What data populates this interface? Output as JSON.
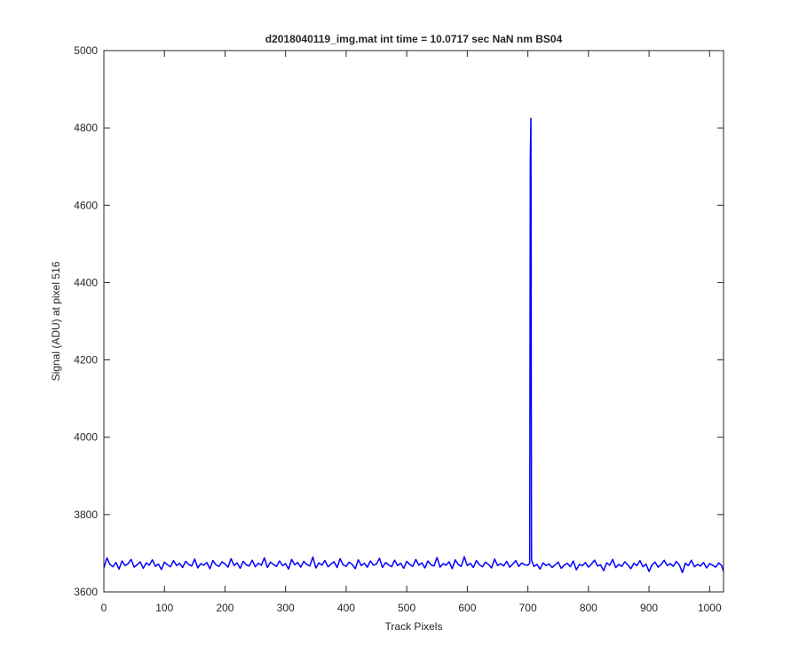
{
  "chart_data": {
    "type": "line",
    "title": "d2018040119_img.mat int time = 10.0717 sec  NaN nm BS04",
    "xlabel": "Track Pixels",
    "ylabel": "Signal (ADU) at pixel 516",
    "color": "#0000ff",
    "xlim": [
      0,
      1023
    ],
    "ylim": [
      3600,
      5000
    ],
    "xticks": [
      0,
      100,
      200,
      300,
      400,
      500,
      600,
      700,
      800,
      900,
      1000
    ],
    "yticks": [
      3600,
      3800,
      4000,
      4200,
      4400,
      4600,
      4800,
      5000
    ],
    "x": [
      0,
      5,
      10,
      15,
      20,
      25,
      30,
      35,
      40,
      45,
      50,
      55,
      60,
      65,
      70,
      75,
      80,
      85,
      90,
      95,
      100,
      105,
      110,
      115,
      120,
      125,
      130,
      135,
      140,
      145,
      150,
      155,
      160,
      165,
      170,
      175,
      180,
      185,
      190,
      195,
      200,
      205,
      210,
      215,
      220,
      225,
      230,
      235,
      240,
      245,
      250,
      255,
      260,
      265,
      270,
      275,
      280,
      285,
      290,
      295,
      300,
      305,
      310,
      315,
      320,
      325,
      330,
      335,
      340,
      345,
      350,
      355,
      360,
      365,
      370,
      375,
      380,
      385,
      390,
      395,
      400,
      405,
      410,
      415,
      420,
      425,
      430,
      435,
      440,
      445,
      450,
      455,
      460,
      465,
      470,
      475,
      480,
      485,
      490,
      495,
      500,
      505,
      510,
      515,
      520,
      525,
      530,
      535,
      540,
      545,
      550,
      555,
      560,
      565,
      570,
      575,
      580,
      585,
      590,
      595,
      600,
      605,
      610,
      615,
      620,
      625,
      630,
      635,
      640,
      645,
      650,
      655,
      660,
      665,
      670,
      675,
      680,
      685,
      690,
      695,
      700,
      703,
      704,
      705,
      706,
      710,
      715,
      720,
      725,
      730,
      735,
      740,
      745,
      750,
      755,
      760,
      765,
      770,
      775,
      780,
      785,
      790,
      795,
      800,
      805,
      810,
      815,
      820,
      825,
      830,
      835,
      840,
      845,
      850,
      855,
      860,
      865,
      870,
      875,
      880,
      885,
      890,
      895,
      900,
      905,
      910,
      915,
      920,
      925,
      930,
      935,
      940,
      945,
      950,
      955,
      960,
      965,
      970,
      975,
      980,
      985,
      990,
      995,
      1000,
      1005,
      1010,
      1015,
      1020,
      1023
    ],
    "values": [
      3662,
      3688,
      3671,
      3665,
      3676,
      3659,
      3680,
      3668,
      3673,
      3684,
      3664,
      3670,
      3678,
      3661,
      3675,
      3669,
      3683,
      3666,
      3672,
      3658,
      3677,
      3670,
      3665,
      3681,
      3668,
      3674,
      3663,
      3679,
      3671,
      3667,
      3685,
      3662,
      3673,
      3669,
      3676,
      3660,
      3681,
      3670,
      3666,
      3678,
      3672,
      3664,
      3686,
      3668,
      3675,
      3661,
      3679,
      3670,
      3667,
      3682,
      3665,
      3674,
      3669,
      3688,
      3663,
      3677,
      3671,
      3666,
      3680,
      3668,
      3673,
      3659,
      3684,
      3670,
      3676,
      3664,
      3679,
      3671,
      3667,
      3690,
      3662,
      3675,
      3669,
      3681,
      3665,
      3672,
      3678,
      3663,
      3686,
      3670,
      3666,
      3677,
      3671,
      3660,
      3683,
      3668,
      3674,
      3664,
      3680,
      3669,
      3672,
      3687,
      3663,
      3676,
      3670,
      3665,
      3682,
      3668,
      3674,
      3661,
      3679,
      3671,
      3666,
      3684,
      3669,
      3675,
      3662,
      3680,
      3670,
      3667,
      3689,
      3664,
      3673,
      3669,
      3678,
      3660,
      3683,
      3671,
      3666,
      3691,
      3668,
      3674,
      3663,
      3681,
      3670,
      3665,
      3677,
      3671,
      3662,
      3685,
      3668,
      3673,
      3667,
      3679,
      3664,
      3672,
      3681,
      3666,
      3675,
      3670,
      3669,
      3674,
      4720,
      4825,
      3682,
      3666,
      3671,
      3659,
      3675,
      3668,
      3672,
      3663,
      3670,
      3677,
      3661,
      3669,
      3674,
      3665,
      3680,
      3657,
      3671,
      3668,
      3676,
      3664,
      3672,
      3682,
      3667,
      3670,
      3655,
      3675,
      3669,
      3684,
      3663,
      3671,
      3666,
      3678,
      3670,
      3660,
      3674,
      3668,
      3681,
      3665,
      3672,
      3653,
      3670,
      3677,
      3664,
      3671,
      3682,
      3668,
      3673,
      3666,
      3679,
      3670,
      3650,
      3674,
      3668,
      3682,
      3665,
      3671,
      3667,
      3676,
      3662,
      3673,
      3669,
      3664,
      3675,
      3668,
      3652
    ]
  }
}
